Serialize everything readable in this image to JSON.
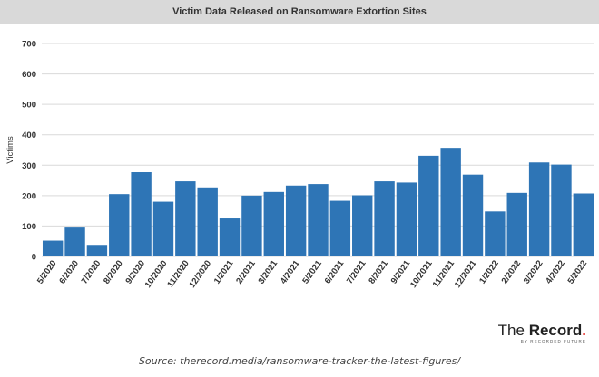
{
  "title": "Victim Data Released on Ransomware Extortion Sites",
  "source": "Source: therecord.media/ransomware-tracker-the-latest-figures/",
  "logo": {
    "the": "The",
    "record": "Record",
    "dot": ".",
    "tagline": "BY RECORDED FUTURE"
  },
  "colors": {
    "bar": "#2e75b6",
    "grid": "#d9d9d9",
    "title_bar": "#d9d9d9",
    "logo_dot": "#e8322c"
  },
  "chart_data": {
    "type": "bar",
    "title": "Victim Data Released on Ransomware Extortion Sites",
    "xlabel": "",
    "ylabel": "Victims",
    "ylim": [
      0,
      700
    ],
    "yticks": [
      0,
      100,
      200,
      300,
      400,
      500,
      600,
      700
    ],
    "grid": true,
    "categories": [
      "5/2020",
      "6/2020",
      "7/2020",
      "8/2020",
      "9/2020",
      "10/2020",
      "11/2020",
      "12/2020",
      "1/2021",
      "2/2021",
      "3/2021",
      "4/2021",
      "5/2021",
      "6/2021",
      "7/2021",
      "8/2021",
      "9/2021",
      "10/2021",
      "11/2021",
      "12/2021",
      "1/2022",
      "2/2022",
      "3/2022",
      "4/2022",
      "5/2022"
    ],
    "values": [
      52,
      95,
      38,
      205,
      277,
      180,
      247,
      227,
      125,
      200,
      212,
      233,
      238,
      183,
      201,
      247,
      243,
      331,
      357,
      269,
      148,
      209,
      309,
      302,
      207
    ]
  }
}
